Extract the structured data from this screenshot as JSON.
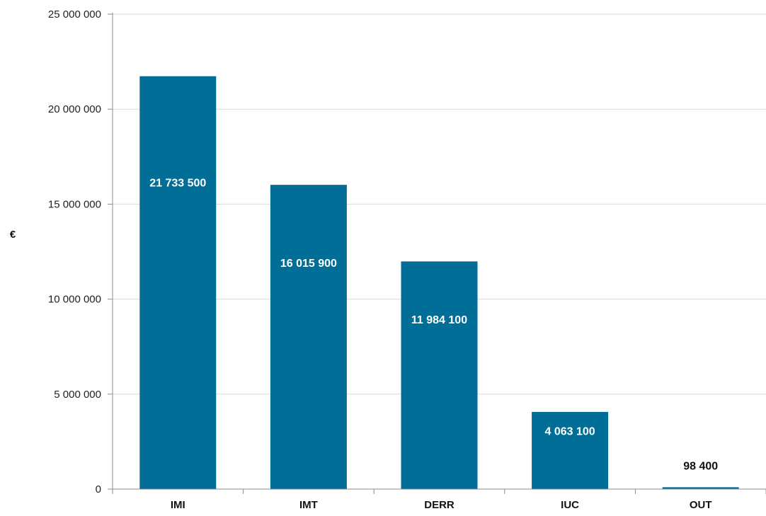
{
  "chart_data": {
    "type": "bar",
    "title": "",
    "xlabel": "",
    "ylabel": "€",
    "ylim": [
      0,
      25000000
    ],
    "y_ticks": [
      0,
      5000000,
      10000000,
      15000000,
      20000000,
      25000000
    ],
    "y_tick_labels": [
      "0",
      "5 000 000",
      "10 000 000",
      "15 000 000",
      "20 000 000",
      "25 000 000"
    ],
    "categories": [
      "IMI",
      "IMT",
      "DERR",
      "IUC",
      "OUT"
    ],
    "values": [
      21733500,
      16015900,
      11984100,
      4063100,
      98400
    ],
    "data_labels": [
      "21 733 500",
      "16 015 900",
      "11 984 100",
      "4 063 100",
      "98 400"
    ],
    "grid": true,
    "legend": "none",
    "colors": {
      "bar": "#006e96",
      "grid": "#d9d9d9",
      "axis": "#8c8c8c",
      "label_inside": "#ffffff",
      "label_outside": "#111111"
    }
  }
}
